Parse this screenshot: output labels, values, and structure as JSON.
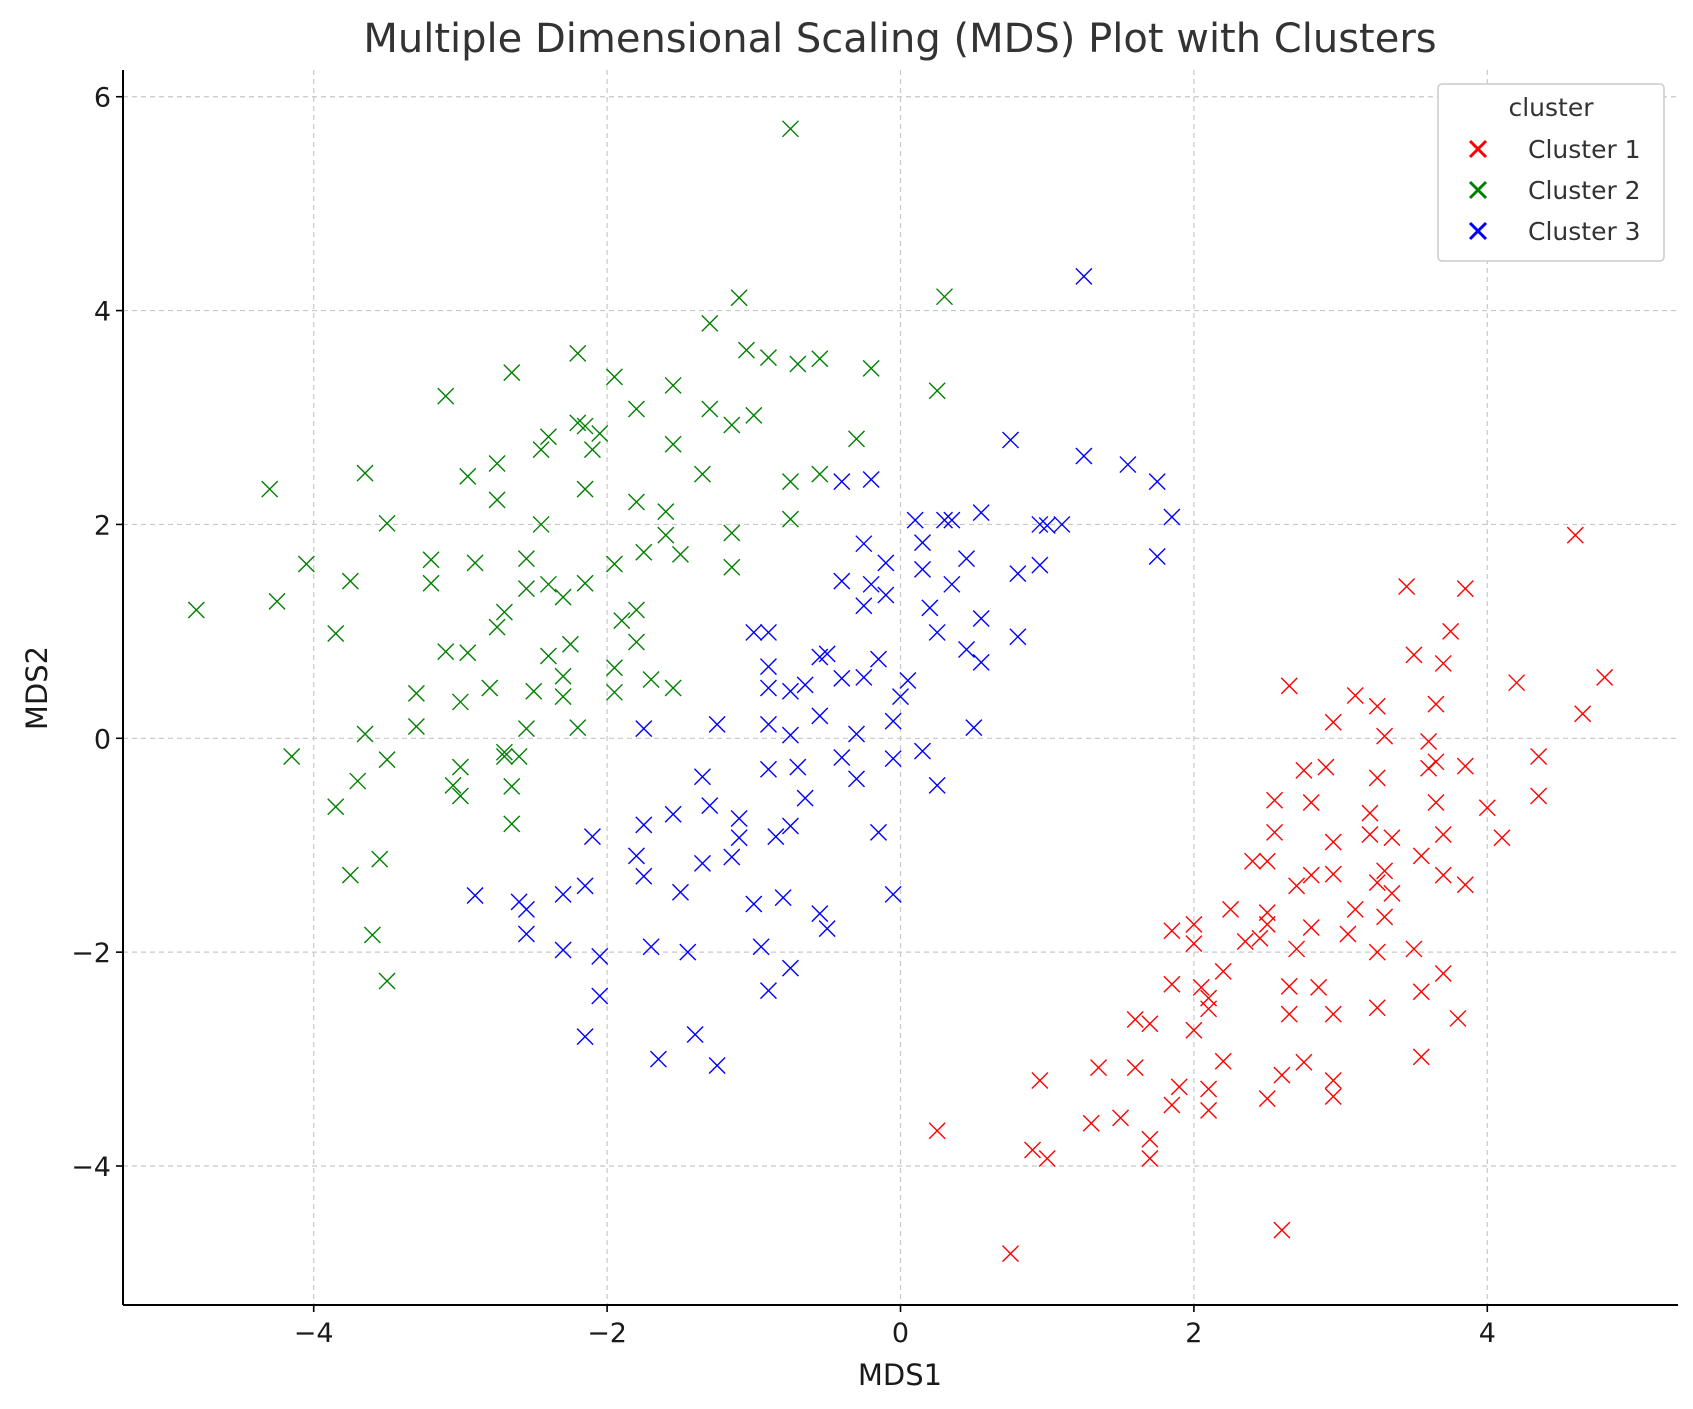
{
  "chart_data": {
    "type": "scatter",
    "title": "Multiple Dimensional Scaling (MDS) Plot with Clusters",
    "xlabel": "MDS1",
    "ylabel": "MDS2",
    "xlim": [
      -5.3,
      5.3
    ],
    "ylim": [
      -5.3,
      6.25
    ],
    "xticks": [
      -4,
      -2,
      0,
      2,
      4
    ],
    "yticks": [
      -4,
      -2,
      0,
      2,
      4,
      6
    ],
    "xtick_labels": [
      "−4",
      "−2",
      "0",
      "2",
      "4"
    ],
    "ytick_labels": [
      "−4",
      "−2",
      "0",
      "2",
      "4",
      "6"
    ],
    "grid": true,
    "marker": "x",
    "legend": {
      "title": "cluster",
      "placement": "top-right"
    },
    "series": [
      {
        "name": "Cluster 1",
        "color": "#ff0000",
        "points": [
          [
            4.6,
            1.9
          ],
          [
            3.45,
            1.42
          ],
          [
            3.85,
            1.4
          ],
          [
            3.75,
            1.0
          ],
          [
            3.5,
            0.78
          ],
          [
            3.7,
            0.7
          ],
          [
            4.8,
            0.57
          ],
          [
            4.2,
            0.52
          ],
          [
            2.65,
            0.49
          ],
          [
            3.1,
            0.4
          ],
          [
            3.25,
            0.3
          ],
          [
            3.65,
            0.32
          ],
          [
            4.65,
            0.23
          ],
          [
            2.95,
            0.15
          ],
          [
            3.3,
            0.02
          ],
          [
            3.6,
            -0.03
          ],
          [
            4.35,
            -0.17
          ],
          [
            3.65,
            -0.22
          ],
          [
            3.6,
            -0.28
          ],
          [
            2.75,
            -0.3
          ],
          [
            2.9,
            -0.27
          ],
          [
            3.85,
            -0.26
          ],
          [
            3.25,
            -0.37
          ],
          [
            2.55,
            -0.58
          ],
          [
            2.8,
            -0.6
          ],
          [
            3.65,
            -0.6
          ],
          [
            4.35,
            -0.54
          ],
          [
            3.2,
            -0.7
          ],
          [
            4.0,
            -0.65
          ],
          [
            2.55,
            -0.88
          ],
          [
            3.2,
            -0.9
          ],
          [
            3.35,
            -0.93
          ],
          [
            2.95,
            -0.97
          ],
          [
            3.7,
            -0.9
          ],
          [
            4.1,
            -0.93
          ],
          [
            2.4,
            -1.15
          ],
          [
            2.5,
            -1.15
          ],
          [
            3.55,
            -1.1
          ],
          [
            3.3,
            -1.24
          ],
          [
            2.95,
            -1.27
          ],
          [
            2.8,
            -1.28
          ],
          [
            3.25,
            -1.35
          ],
          [
            3.7,
            -1.28
          ],
          [
            2.7,
            -1.38
          ],
          [
            3.35,
            -1.45
          ],
          [
            3.85,
            -1.37
          ],
          [
            2.25,
            -1.6
          ],
          [
            2.5,
            -1.63
          ],
          [
            3.1,
            -1.6
          ],
          [
            3.3,
            -1.67
          ],
          [
            2.0,
            -1.74
          ],
          [
            2.5,
            -1.74
          ],
          [
            2.8,
            -1.77
          ],
          [
            1.85,
            -1.8
          ],
          [
            2.45,
            -1.87
          ],
          [
            2.35,
            -1.9
          ],
          [
            3.05,
            -1.83
          ],
          [
            2.0,
            -1.92
          ],
          [
            2.7,
            -1.97
          ],
          [
            3.25,
            -2.0
          ],
          [
            3.5,
            -1.97
          ],
          [
            2.2,
            -2.18
          ],
          [
            3.7,
            -2.2
          ],
          [
            1.85,
            -2.3
          ],
          [
            2.65,
            -2.32
          ],
          [
            2.85,
            -2.33
          ],
          [
            2.05,
            -2.33
          ],
          [
            2.1,
            -2.43
          ],
          [
            3.55,
            -2.37
          ],
          [
            2.1,
            -2.53
          ],
          [
            3.25,
            -2.52
          ],
          [
            2.65,
            -2.58
          ],
          [
            2.95,
            -2.58
          ],
          [
            3.8,
            -2.62
          ],
          [
            1.6,
            -2.63
          ],
          [
            1.7,
            -2.67
          ],
          [
            2.0,
            -2.73
          ],
          [
            3.55,
            -2.98
          ],
          [
            2.2,
            -3.02
          ],
          [
            2.75,
            -3.03
          ],
          [
            1.35,
            -3.08
          ],
          [
            1.6,
            -3.08
          ],
          [
            2.6,
            -3.15
          ],
          [
            0.95,
            -3.2
          ],
          [
            2.95,
            -3.2
          ],
          [
            1.9,
            -3.26
          ],
          [
            2.1,
            -3.28
          ],
          [
            2.95,
            -3.35
          ],
          [
            2.5,
            -3.37
          ],
          [
            1.85,
            -3.43
          ],
          [
            2.1,
            -3.48
          ],
          [
            1.5,
            -3.55
          ],
          [
            1.3,
            -3.6
          ],
          [
            0.25,
            -3.67
          ],
          [
            1.7,
            -3.75
          ],
          [
            0.9,
            -3.85
          ],
          [
            1.0,
            -3.93
          ],
          [
            1.7,
            -3.93
          ],
          [
            2.6,
            -4.6
          ],
          [
            0.75,
            -4.82
          ]
        ]
      },
      {
        "name": "Cluster 2",
        "color": "#008000",
        "points": [
          [
            -0.75,
            5.7
          ],
          [
            -1.1,
            4.12
          ],
          [
            0.3,
            4.13
          ],
          [
            -1.3,
            3.88
          ],
          [
            -1.05,
            3.63
          ],
          [
            -2.2,
            3.6
          ],
          [
            -0.9,
            3.56
          ],
          [
            -0.55,
            3.55
          ],
          [
            -0.7,
            3.5
          ],
          [
            -0.2,
            3.46
          ],
          [
            -2.65,
            3.42
          ],
          [
            -1.95,
            3.38
          ],
          [
            -1.55,
            3.3
          ],
          [
            0.25,
            3.25
          ],
          [
            -3.1,
            3.2
          ],
          [
            -1.3,
            3.08
          ],
          [
            -1.8,
            3.08
          ],
          [
            -1.0,
            3.02
          ],
          [
            -2.2,
            2.95
          ],
          [
            -2.05,
            2.85
          ],
          [
            -1.15,
            2.93
          ],
          [
            -2.15,
            2.92
          ],
          [
            -2.4,
            2.82
          ],
          [
            -0.3,
            2.8
          ],
          [
            -2.45,
            2.7
          ],
          [
            -1.55,
            2.75
          ],
          [
            -2.1,
            2.7
          ],
          [
            -2.75,
            2.57
          ],
          [
            -1.35,
            2.47
          ],
          [
            -0.55,
            2.47
          ],
          [
            -0.75,
            2.4
          ],
          [
            -2.95,
            2.45
          ],
          [
            -3.65,
            2.48
          ],
          [
            -4.3,
            2.33
          ],
          [
            -2.15,
            2.33
          ],
          [
            -2.75,
            2.23
          ],
          [
            -1.8,
            2.21
          ],
          [
            -1.6,
            2.12
          ],
          [
            -0.75,
            2.05
          ],
          [
            -3.5,
            2.01
          ],
          [
            -2.45,
            2.0
          ],
          [
            -1.6,
            1.9
          ],
          [
            -1.15,
            1.92
          ],
          [
            -1.75,
            1.74
          ],
          [
            -1.5,
            1.72
          ],
          [
            -2.55,
            1.68
          ],
          [
            -3.2,
            1.67
          ],
          [
            -4.05,
            1.63
          ],
          [
            -2.9,
            1.64
          ],
          [
            -1.95,
            1.63
          ],
          [
            -1.15,
            1.6
          ],
          [
            -3.75,
            1.47
          ],
          [
            -3.2,
            1.45
          ],
          [
            -2.4,
            1.44
          ],
          [
            -2.15,
            1.45
          ],
          [
            -2.55,
            1.4
          ],
          [
            -2.3,
            1.32
          ],
          [
            -4.25,
            1.28
          ],
          [
            -4.8,
            1.2
          ],
          [
            -2.7,
            1.18
          ],
          [
            -1.8,
            1.2
          ],
          [
            -1.9,
            1.1
          ],
          [
            -2.75,
            1.04
          ],
          [
            -3.85,
            0.98
          ],
          [
            -1.8,
            0.9
          ],
          [
            -2.25,
            0.88
          ],
          [
            -3.1,
            0.81
          ],
          [
            -2.95,
            0.8
          ],
          [
            -2.4,
            0.77
          ],
          [
            -1.95,
            0.66
          ],
          [
            -2.3,
            0.58
          ],
          [
            -1.7,
            0.55
          ],
          [
            -2.8,
            0.47
          ],
          [
            -1.55,
            0.47
          ],
          [
            -2.5,
            0.44
          ],
          [
            -1.95,
            0.43
          ],
          [
            -3.3,
            0.42
          ],
          [
            -2.3,
            0.39
          ],
          [
            -3.0,
            0.34
          ],
          [
            -3.3,
            0.11
          ],
          [
            -2.2,
            0.1
          ],
          [
            -2.55,
            0.09
          ],
          [
            -3.65,
            0.04
          ],
          [
            -2.7,
            -0.13
          ],
          [
            -4.15,
            -0.17
          ],
          [
            -2.7,
            -0.17
          ],
          [
            -2.6,
            -0.17
          ],
          [
            -3.5,
            -0.2
          ],
          [
            -3.0,
            -0.27
          ],
          [
            -3.7,
            -0.4
          ],
          [
            -3.05,
            -0.44
          ],
          [
            -2.65,
            -0.45
          ],
          [
            -3.0,
            -0.54
          ],
          [
            -3.85,
            -0.64
          ],
          [
            -2.65,
            -0.8
          ],
          [
            -3.55,
            -1.13
          ],
          [
            -3.75,
            -1.28
          ],
          [
            -3.6,
            -1.84
          ],
          [
            -3.5,
            -2.27
          ]
        ]
      },
      {
        "name": "Cluster 3",
        "color": "#0000ff",
        "points": [
          [
            1.25,
            4.32
          ],
          [
            0.75,
            2.79
          ],
          [
            1.25,
            2.64
          ],
          [
            1.55,
            2.56
          ],
          [
            1.75,
            2.4
          ],
          [
            -0.4,
            2.4
          ],
          [
            -0.2,
            2.42
          ],
          [
            0.55,
            2.11
          ],
          [
            1.85,
            2.07
          ],
          [
            0.1,
            2.04
          ],
          [
            0.3,
            2.04
          ],
          [
            0.35,
            2.04
          ],
          [
            0.95,
            2.0
          ],
          [
            1.1,
            2.0
          ],
          [
            1.0,
            1.99
          ],
          [
            -0.25,
            1.82
          ],
          [
            0.15,
            1.83
          ],
          [
            1.75,
            1.7
          ],
          [
            0.45,
            1.68
          ],
          [
            -0.1,
            1.64
          ],
          [
            0.95,
            1.62
          ],
          [
            0.15,
            1.58
          ],
          [
            0.8,
            1.54
          ],
          [
            -0.4,
            1.47
          ],
          [
            -0.2,
            1.44
          ],
          [
            0.35,
            1.44
          ],
          [
            -0.1,
            1.34
          ],
          [
            -0.25,
            1.24
          ],
          [
            0.2,
            1.22
          ],
          [
            0.55,
            1.12
          ],
          [
            -1.0,
            0.99
          ],
          [
            -0.9,
            0.99
          ],
          [
            0.25,
            0.99
          ],
          [
            0.8,
            0.95
          ],
          [
            0.45,
            0.83
          ],
          [
            -0.5,
            0.79
          ],
          [
            -0.55,
            0.76
          ],
          [
            -0.15,
            0.74
          ],
          [
            0.55,
            0.71
          ],
          [
            -0.9,
            0.67
          ],
          [
            -0.4,
            0.56
          ],
          [
            -0.25,
            0.57
          ],
          [
            0.05,
            0.54
          ],
          [
            -0.65,
            0.5
          ],
          [
            -0.9,
            0.47
          ],
          [
            -0.75,
            0.44
          ],
          [
            0.0,
            0.39
          ],
          [
            -0.55,
            0.21
          ],
          [
            -0.05,
            0.16
          ],
          [
            -1.25,
            0.13
          ],
          [
            -0.9,
            0.13
          ],
          [
            0.5,
            0.1
          ],
          [
            -1.75,
            0.09
          ],
          [
            -0.75,
            0.03
          ],
          [
            -0.3,
            0.04
          ],
          [
            0.15,
            -0.12
          ],
          [
            -0.4,
            -0.18
          ],
          [
            -0.05,
            -0.19
          ],
          [
            -0.9,
            -0.29
          ],
          [
            -0.7,
            -0.27
          ],
          [
            -1.35,
            -0.36
          ],
          [
            -0.3,
            -0.38
          ],
          [
            0.25,
            -0.44
          ],
          [
            -0.65,
            -0.56
          ],
          [
            -1.3,
            -0.63
          ],
          [
            -1.55,
            -0.71
          ],
          [
            -1.1,
            -0.75
          ],
          [
            -1.75,
            -0.81
          ],
          [
            -0.75,
            -0.82
          ],
          [
            -0.15,
            -0.88
          ],
          [
            -2.1,
            -0.92
          ],
          [
            -1.1,
            -0.93
          ],
          [
            -0.85,
            -0.92
          ],
          [
            -1.8,
            -1.1
          ],
          [
            -1.15,
            -1.11
          ],
          [
            -1.35,
            -1.17
          ],
          [
            -1.75,
            -1.29
          ],
          [
            -2.15,
            -1.38
          ],
          [
            -2.9,
            -1.47
          ],
          [
            -2.3,
            -1.46
          ],
          [
            -1.5,
            -1.44
          ],
          [
            -0.05,
            -1.46
          ],
          [
            -0.8,
            -1.49
          ],
          [
            -2.6,
            -1.53
          ],
          [
            -1.0,
            -1.55
          ],
          [
            -2.55,
            -1.6
          ],
          [
            -0.55,
            -1.64
          ],
          [
            -0.5,
            -1.78
          ],
          [
            -2.55,
            -1.83
          ],
          [
            -1.7,
            -1.95
          ],
          [
            -0.95,
            -1.95
          ],
          [
            -2.3,
            -1.98
          ],
          [
            -1.45,
            -2.0
          ],
          [
            -2.05,
            -2.04
          ],
          [
            -0.75,
            -2.15
          ],
          [
            -0.9,
            -2.36
          ],
          [
            -2.05,
            -2.41
          ],
          [
            -1.4,
            -2.77
          ],
          [
            -2.15,
            -2.79
          ],
          [
            -1.65,
            -3.0
          ],
          [
            -1.25,
            -3.06
          ]
        ]
      }
    ]
  }
}
